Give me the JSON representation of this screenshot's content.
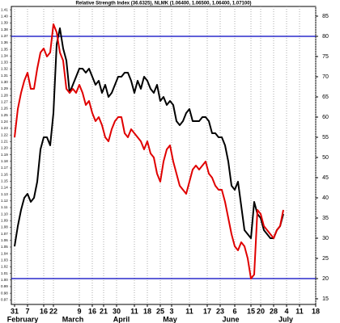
{
  "chart_data": {
    "type": "line",
    "title": "Relative Strength Index (36.6325), NLMK (1.06400, 1.06500, 1.06400, 1.07100)",
    "x": [
      1,
      2,
      3,
      4,
      5,
      6,
      7,
      8,
      9,
      10,
      11,
      12,
      13,
      14,
      15,
      16,
      17,
      18,
      19,
      20,
      21,
      22,
      23,
      24,
      25,
      26,
      27,
      28,
      29,
      30,
      31,
      32,
      33,
      34,
      35,
      36,
      37,
      38,
      39,
      40,
      41,
      42,
      43,
      44,
      45,
      46,
      47,
      48,
      49,
      50,
      51,
      52,
      53,
      54,
      55,
      56,
      57,
      58,
      59,
      60,
      61,
      62,
      63,
      64,
      65,
      66,
      67,
      68,
      69,
      70,
      71,
      72,
      73,
      74,
      75,
      76,
      77,
      78,
      79,
      80,
      81,
      82,
      83,
      84
    ],
    "series": [
      {
        "color": "#000000",
        "values": [
          28,
          33,
          37,
          40,
          41,
          39,
          40,
          44,
          52,
          55,
          55,
          53,
          61,
          78,
          82,
          77,
          74,
          66,
          68,
          70,
          72,
          72,
          71,
          72,
          70,
          68,
          69,
          66,
          68,
          65,
          66,
          68,
          70,
          70,
          71,
          71,
          69,
          66,
          69,
          67,
          70,
          69,
          67,
          66,
          68,
          64,
          65,
          63,
          64,
          63,
          59,
          58,
          59,
          61,
          62,
          59,
          59,
          59,
          60,
          60,
          59,
          56,
          56,
          55,
          55,
          53,
          49,
          43,
          42,
          44,
          38,
          32,
          31,
          30,
          39,
          36,
          35,
          32,
          31,
          30,
          30,
          32,
          33,
          36
        ]
      },
      {
        "color": "#e00000",
        "values": [
          55,
          62,
          66,
          69,
          71,
          67,
          67,
          72,
          76,
          77,
          75,
          76,
          83,
          81,
          76,
          74,
          67,
          66,
          67,
          66,
          68,
          66,
          63,
          64,
          61,
          59,
          60,
          58,
          55,
          54,
          57,
          59,
          60,
          60,
          56,
          55,
          57,
          56,
          55,
          54,
          52,
          54,
          51,
          50,
          46,
          44,
          49,
          52,
          53,
          49,
          46,
          43,
          42,
          41,
          44,
          47,
          48,
          47,
          48,
          49,
          46,
          45,
          43,
          42,
          42,
          39,
          35,
          31,
          28,
          27,
          29,
          28,
          25,
          20,
          21,
          37,
          36,
          33,
          32,
          31,
          30,
          32,
          33,
          37
        ]
      }
    ],
    "xlim": [
      0,
      94
    ],
    "xticks": [
      {
        "value": 1,
        "label": "31"
      },
      {
        "value": 5,
        "label": "7"
      },
      {
        "value": 10,
        "label": "16"
      },
      {
        "value": 13,
        "label": "22"
      },
      {
        "value": 21,
        "label": "9"
      },
      {
        "value": 25,
        "label": "16"
      },
      {
        "value": 28.5,
        "label": "21"
      },
      {
        "value": 32.5,
        "label": "30"
      },
      {
        "value": 38,
        "label": "11"
      },
      {
        "value": 42,
        "label": "18"
      },
      {
        "value": 46,
        "label": "25"
      },
      {
        "value": 49.5,
        "label": "3"
      },
      {
        "value": 55,
        "label": "11"
      },
      {
        "value": 60.5,
        "label": "17"
      },
      {
        "value": 64.5,
        "label": "23"
      },
      {
        "value": 69,
        "label": "6"
      },
      {
        "value": 74,
        "label": "15"
      },
      {
        "value": 77,
        "label": "20"
      },
      {
        "value": 81,
        "label": "28"
      },
      {
        "value": 85,
        "label": "4"
      },
      {
        "value": 89,
        "label": "11"
      },
      {
        "value": 94,
        "label": "18"
      }
    ],
    "month_labels": [
      {
        "value": 3.5,
        "label": "February"
      },
      {
        "value": 19,
        "label": "March"
      },
      {
        "value": 34,
        "label": "April"
      },
      {
        "value": 49,
        "label": "May"
      },
      {
        "value": 67.75,
        "label": "June"
      },
      {
        "value": 84.75,
        "label": "July"
      }
    ],
    "ylim": [
      13.6,
      87.4
    ],
    "yticks": [
      15,
      20,
      25,
      30,
      35,
      40,
      45,
      50,
      55,
      60,
      65,
      70,
      75,
      80,
      85
    ],
    "y2lim": [
      0.963,
      1.415
    ],
    "y2ticks": [
      {
        "value": 0.97,
        "label": "0.97"
      },
      {
        "value": 0.98,
        "label": "0.98"
      },
      {
        "value": 0.99,
        "label": "0.99"
      },
      {
        "value": 1.0,
        "label": "1.00"
      },
      {
        "value": 1.01,
        "label": "1.01"
      },
      {
        "value": 1.02,
        "label": "1.02"
      },
      {
        "value": 1.03,
        "label": "1.03"
      },
      {
        "value": 1.04,
        "label": "1.04"
      },
      {
        "value": 1.05,
        "label": "1.05"
      },
      {
        "value": 1.06,
        "label": "1.06"
      },
      {
        "value": 1.07,
        "label": "1.07"
      },
      {
        "value": 1.08,
        "label": "1.08"
      },
      {
        "value": 1.09,
        "label": "1.09"
      },
      {
        "value": 1.1,
        "label": "1.10"
      },
      {
        "value": 1.11,
        "label": "1.11"
      },
      {
        "value": 1.12,
        "label": "1.12"
      },
      {
        "value": 1.13,
        "label": "1.13"
      },
      {
        "value": 1.14,
        "label": "1.14"
      },
      {
        "value": 1.15,
        "label": "1.15"
      },
      {
        "value": 1.16,
        "label": "1.16"
      },
      {
        "value": 1.17,
        "label": "1.17"
      },
      {
        "value": 1.18,
        "label": "1.18"
      },
      {
        "value": 1.19,
        "label": "1.19"
      },
      {
        "value": 1.2,
        "label": "1.20"
      },
      {
        "value": 1.21,
        "label": "1.21"
      },
      {
        "value": 1.22,
        "label": "1.22"
      },
      {
        "value": 1.23,
        "label": "1.23"
      },
      {
        "value": 1.24,
        "label": "1.24"
      },
      {
        "value": 1.25,
        "label": "1.25"
      },
      {
        "value": 1.26,
        "label": "1.26"
      },
      {
        "value": 1.27,
        "label": "1.27"
      },
      {
        "value": 1.28,
        "label": "1.28"
      },
      {
        "value": 1.29,
        "label": "1.29"
      },
      {
        "value": 1.3,
        "label": "1.30"
      },
      {
        "value": 1.31,
        "label": "1.31"
      },
      {
        "value": 1.32,
        "label": "1.32"
      },
      {
        "value": 1.33,
        "label": "1.33"
      },
      {
        "value": 1.34,
        "label": "1.34"
      },
      {
        "value": 1.35,
        "label": "1.35"
      },
      {
        "value": 1.36,
        "label": "1.36"
      },
      {
        "value": 1.37,
        "label": "1.37"
      },
      {
        "value": 1.38,
        "label": "1.38"
      },
      {
        "value": 1.39,
        "label": "1.39"
      },
      {
        "value": 1.4,
        "label": "1.40"
      },
      {
        "value": 1.41,
        "label": "1.41"
      }
    ],
    "reference_lines": [
      80,
      20
    ],
    "reference_color": "#0000c0",
    "grid": true
  }
}
